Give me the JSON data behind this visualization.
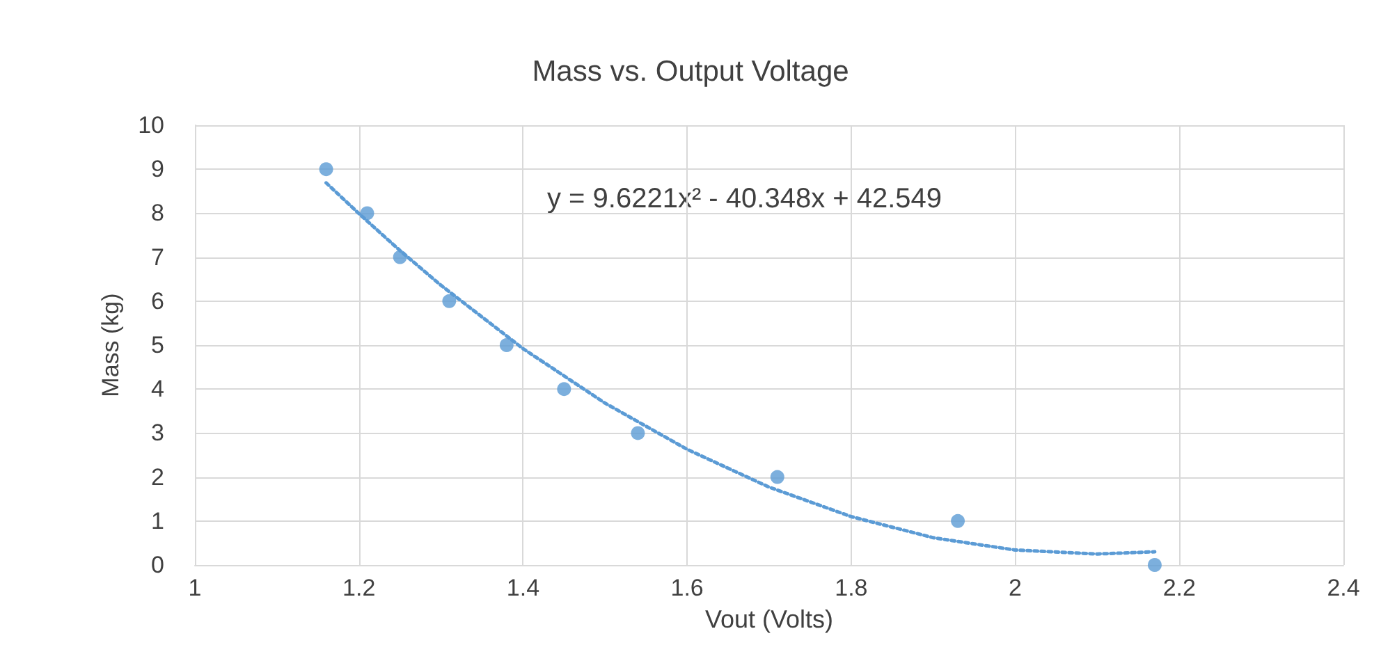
{
  "chart_data": {
    "type": "scatter",
    "title": "Mass vs. Output Voltage",
    "xlabel": "Vout (Volts)",
    "ylabel": "Mass (kg)",
    "annotations": [
      "y = 9.6221x² - 40.348x + 42.549"
    ],
    "xlim": [
      1,
      2.4
    ],
    "xticks": [
      1,
      1.2,
      1.4,
      1.6,
      1.8,
      2,
      2.2,
      2.4
    ],
    "ylim": [
      0,
      10
    ],
    "yticks": [
      0,
      1,
      2,
      3,
      4,
      5,
      6,
      7,
      8,
      9,
      10
    ],
    "grid": true,
    "marker": "circle",
    "series": [
      {
        "color": "#5b9bd5",
        "x": [
          1.16,
          1.21,
          1.25,
          1.31,
          1.38,
          1.45,
          1.54,
          1.71,
          1.93,
          2.17
        ],
        "values": [
          9,
          8,
          7,
          6,
          5,
          4,
          3,
          2,
          1,
          0
        ]
      },
      {
        "type": "line",
        "color": "#5b9bd5",
        "marker": "none",
        "line_style": "dotted",
        "x": [
          1.16,
          1.2,
          1.25,
          1.3,
          1.4,
          1.5,
          1.6,
          1.7,
          1.8,
          1.9,
          2.0,
          2.1,
          2.17
        ],
        "values": [
          8.69,
          7.99,
          7.15,
          6.36,
          4.92,
          3.68,
          2.63,
          1.77,
          1.1,
          0.62,
          0.34,
          0.25,
          0.3
        ]
      }
    ]
  }
}
